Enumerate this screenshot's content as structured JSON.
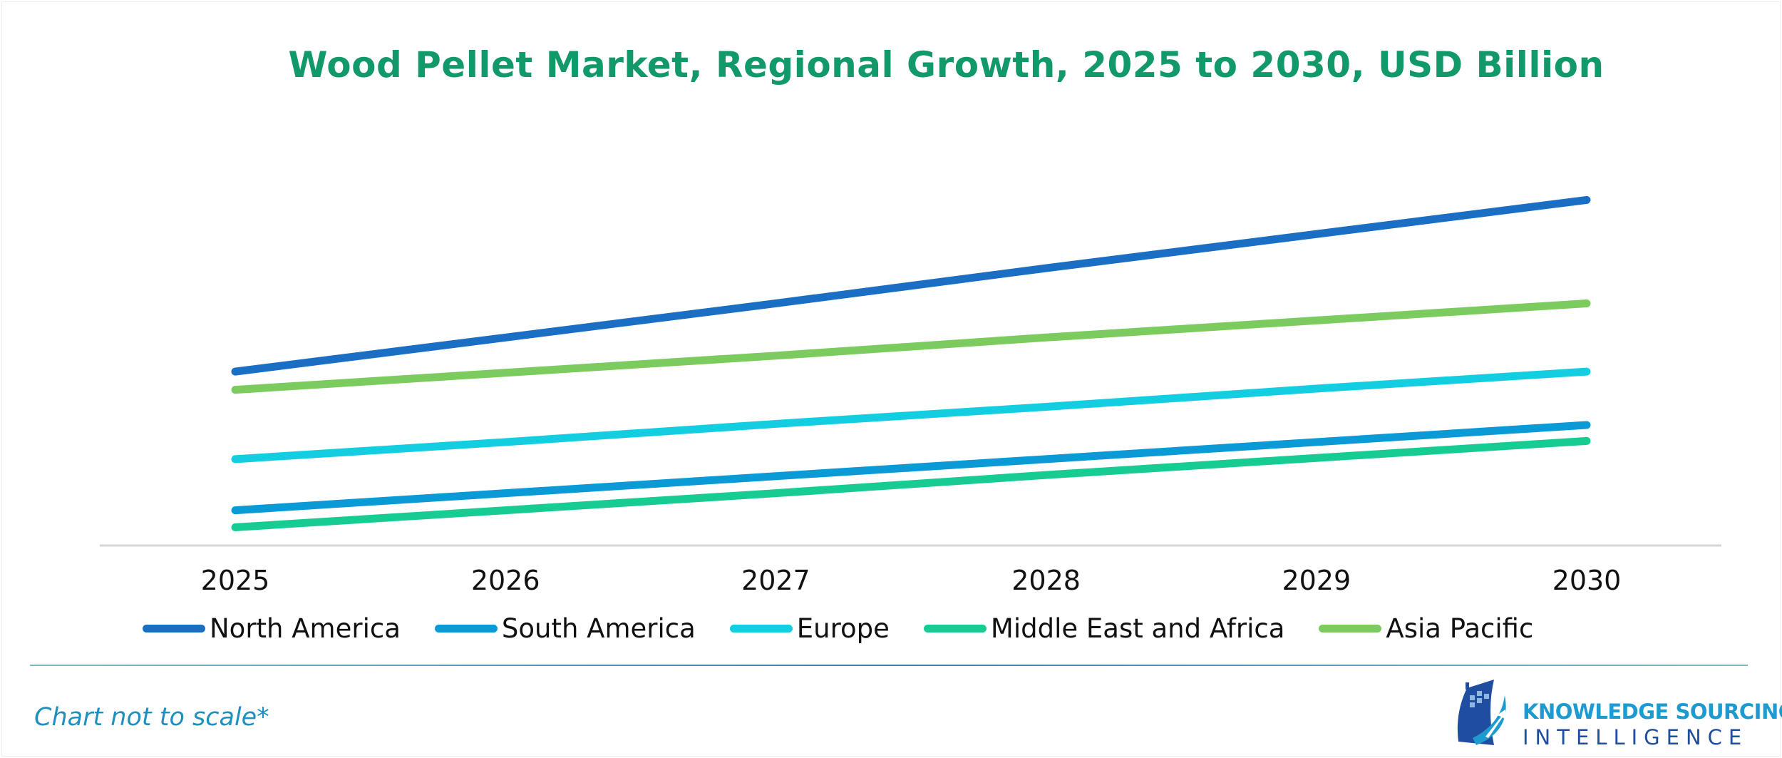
{
  "chart_data": {
    "type": "line",
    "title": "Wood Pellet Market, Regional Growth, 2025 to 2030, USD Billion",
    "xlabel": "",
    "ylabel": "",
    "categories": [
      "2025",
      "2026",
      "2027",
      "2028",
      "2029",
      "2030"
    ],
    "y_axis_visible": false,
    "grid": false,
    "legend_position": "bottom",
    "series": [
      {
        "name": "North America",
        "color": "#1a6fc4",
        "values": [
          15.3,
          18.3,
          21.3,
          24.4,
          27.4,
          30.4
        ]
      },
      {
        "name": "South America",
        "color": "#0a9ad6",
        "values": [
          3.1,
          4.6,
          6.1,
          7.6,
          9.1,
          10.6
        ]
      },
      {
        "name": "Europe",
        "color": "#13cde0",
        "values": [
          7.6,
          9.1,
          10.7,
          12.2,
          13.8,
          15.3
        ]
      },
      {
        "name": "Middle East and Africa",
        "color": "#17cc93",
        "values": [
          1.6,
          3.1,
          4.6,
          6.2,
          7.7,
          9.2
        ]
      },
      {
        "name": "Asia Pacific",
        "color": "#7ccb5e",
        "values": [
          13.7,
          15.2,
          16.7,
          18.3,
          19.8,
          21.3
        ]
      }
    ]
  },
  "footer": {
    "note": "Chart not to scale*",
    "logo_line1": "KNOWLEDGE SOURCING",
    "logo_line2": "INTELLIGENCE"
  }
}
